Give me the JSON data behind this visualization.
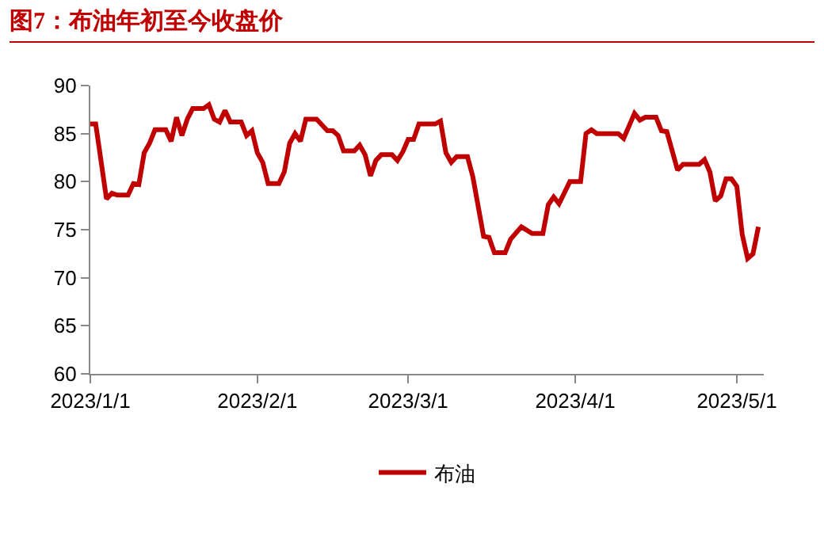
{
  "chart_data": {
    "type": "line",
    "title": "图7：布油年初至今收盘价",
    "legend": "bottom",
    "grid": false,
    "marker": "none",
    "line_style": "solid",
    "xlim": [
      "2023-01-01",
      "2023-05-06"
    ],
    "xticks": [
      {
        "value": "2023-01-01",
        "label": "2023/1/1"
      },
      {
        "value": "2023-02-01",
        "label": "2023/2/1"
      },
      {
        "value": "2023-03-01",
        "label": "2023/3/1"
      },
      {
        "value": "2023-04-01",
        "label": "2023/4/1"
      },
      {
        "value": "2023-05-01",
        "label": "2023/5/1"
      }
    ],
    "ylim": [
      60,
      90
    ],
    "yticks": [
      60,
      65,
      70,
      75,
      80,
      85,
      90
    ],
    "x": [
      "2023-01-01",
      "2023-01-02",
      "2023-01-04",
      "2023-01-05",
      "2023-01-06",
      "2023-01-08",
      "2023-01-09",
      "2023-01-10",
      "2023-01-11",
      "2023-01-12",
      "2023-01-13",
      "2023-01-15",
      "2023-01-16",
      "2023-01-17",
      "2023-01-18",
      "2023-01-19",
      "2023-01-20",
      "2023-01-22",
      "2023-01-23",
      "2023-01-24",
      "2023-01-25",
      "2023-01-26",
      "2023-01-27",
      "2023-01-29",
      "2023-01-30",
      "2023-01-31",
      "2023-02-01",
      "2023-02-02",
      "2023-02-03",
      "2023-02-05",
      "2023-02-06",
      "2023-02-07",
      "2023-02-08",
      "2023-02-09",
      "2023-02-10",
      "2023-02-12",
      "2023-02-14",
      "2023-02-15",
      "2023-02-16",
      "2023-02-17",
      "2023-02-19",
      "2023-02-20",
      "2023-02-21",
      "2023-02-22",
      "2023-02-23",
      "2023-02-24",
      "2023-02-26",
      "2023-02-27",
      "2023-02-28",
      "2023-03-01",
      "2023-03-02",
      "2023-03-03",
      "2023-03-06",
      "2023-03-07",
      "2023-03-08",
      "2023-03-09",
      "2023-03-10",
      "2023-03-12",
      "2023-03-13",
      "2023-03-15",
      "2023-03-16",
      "2023-03-17",
      "2023-03-19",
      "2023-03-20",
      "2023-03-22",
      "2023-03-24",
      "2023-03-26",
      "2023-03-27",
      "2023-03-28",
      "2023-03-29",
      "2023-03-31",
      "2023-04-02",
      "2023-04-03",
      "2023-04-04",
      "2023-04-05",
      "2023-04-09",
      "2023-04-10",
      "2023-04-12",
      "2023-04-13",
      "2023-04-14",
      "2023-04-16",
      "2023-04-17",
      "2023-04-18",
      "2023-04-20",
      "2023-04-21",
      "2023-04-24",
      "2023-04-25",
      "2023-04-26",
      "2023-04-27",
      "2023-04-28",
      "2023-04-29",
      "2023-04-30",
      "2023-05-01",
      "2023-05-02",
      "2023-05-03",
      "2023-05-04",
      "2023-05-05"
    ],
    "series": [
      {
        "name": "布油",
        "color": "#c00000",
        "values": [
          86,
          86,
          78.2,
          78.8,
          78.6,
          78.6,
          79.8,
          79.7,
          83,
          84,
          85.4,
          85.4,
          84.2,
          86.7,
          84.8,
          86.5,
          87.6,
          87.6,
          88,
          86.5,
          86.2,
          87.4,
          86.2,
          86.2,
          84.8,
          85.3,
          83,
          82,
          79.8,
          79.8,
          81,
          84,
          85,
          84.2,
          86.5,
          86.5,
          85.3,
          85.3,
          84.8,
          83.2,
          83.2,
          83.8,
          82.8,
          80.6,
          82.2,
          82.8,
          82.8,
          82.2,
          83.1,
          84.4,
          84.4,
          86,
          86,
          86.3,
          83,
          82,
          82.6,
          82.6,
          80.5,
          74.3,
          74.2,
          72.6,
          72.6,
          74,
          75.3,
          74.6,
          74.6,
          77.6,
          78.4,
          77.7,
          80,
          80,
          85,
          85.4,
          85,
          85,
          84.5,
          87.1,
          86.4,
          86.7,
          86.7,
          85.3,
          85.2,
          81.2,
          81.8,
          81.8,
          82.3,
          81,
          78,
          78.5,
          80.3,
          80.3,
          79.5,
          74.5,
          72,
          72.5,
          75.3
        ]
      }
    ]
  }
}
